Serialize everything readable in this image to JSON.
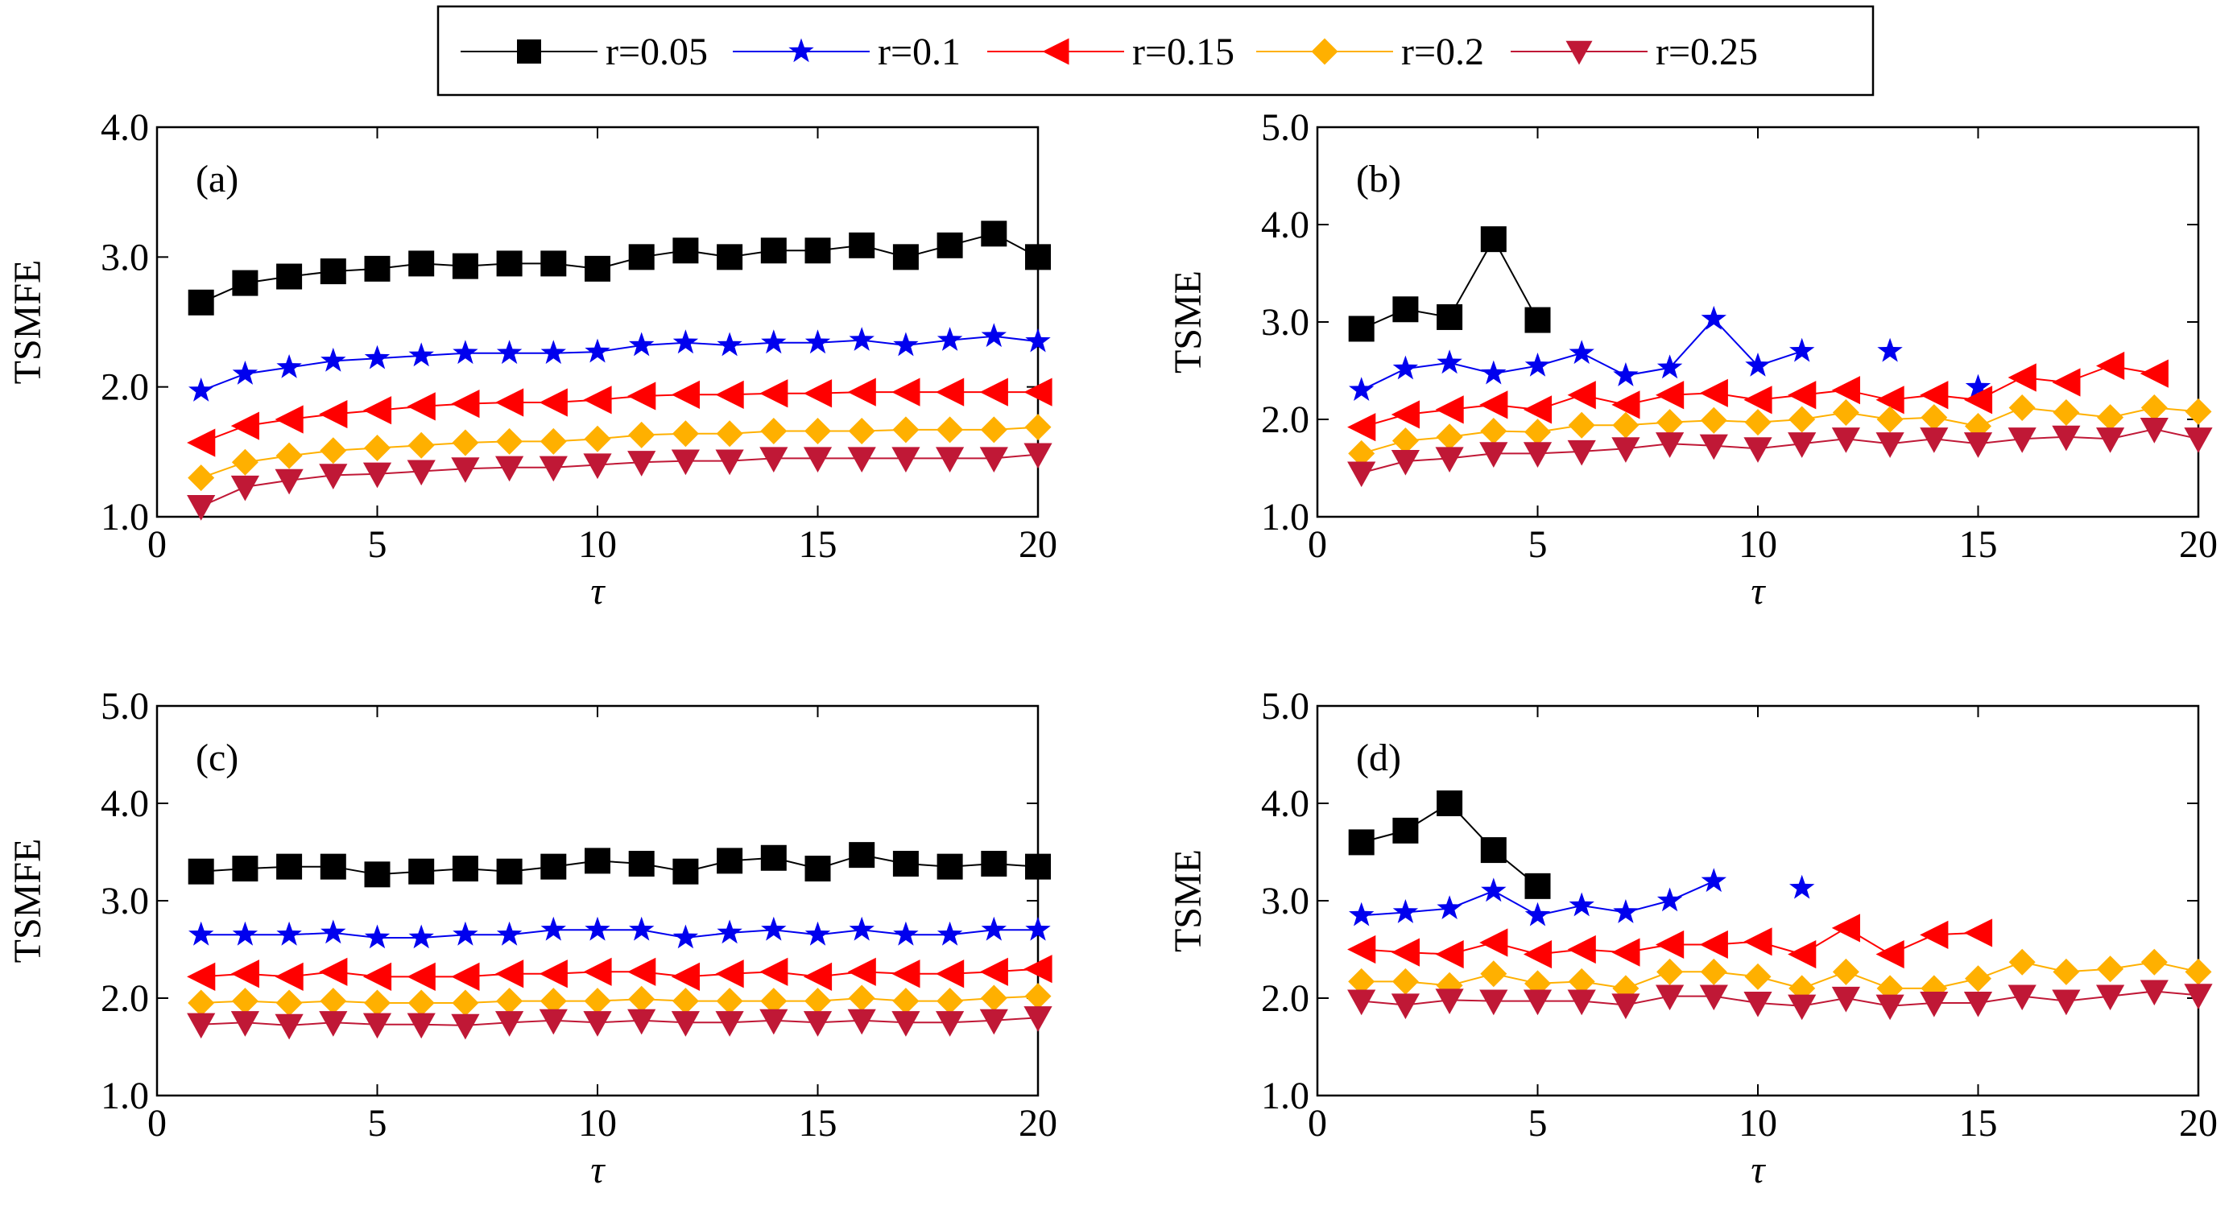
{
  "chart_data": {
    "type": "line",
    "legend": {
      "placement": "top-center",
      "entries": [
        {
          "name": "r=0.05",
          "color": "#000000",
          "marker": "square"
        },
        {
          "name": "r=0.1",
          "color": "#0000ee",
          "marker": "star"
        },
        {
          "name": "r=0.15",
          "color": "#ff0000",
          "marker": "triangle-left"
        },
        {
          "name": "r=0.2",
          "color": "#ffb000",
          "marker": "diamond"
        },
        {
          "name": "r=0.25",
          "color": "#c01836",
          "marker": "triangle-down"
        }
      ]
    },
    "panels": [
      {
        "label": "(a)",
        "xlabel": "τ",
        "ylabel": "TSMFE",
        "xlim": [
          0,
          20
        ],
        "ylim": [
          1.0,
          4.0
        ],
        "xticks": [
          "0",
          "5",
          "10",
          "15",
          "20"
        ],
        "yticks": [
          "1.0",
          "2.0",
          "3.0",
          "4.0"
        ],
        "ytick_values": [
          1.0,
          2.0,
          3.0,
          4.0
        ],
        "series": [
          {
            "name": "r=0.05",
            "x": [
              1,
              2,
              3,
              4,
              5,
              6,
              7,
              8,
              9,
              10,
              11,
              12,
              13,
              14,
              15,
              16,
              17,
              18,
              19,
              20
            ],
            "y": [
              2.65,
              2.8,
              2.85,
              2.89,
              2.91,
              2.95,
              2.93,
              2.95,
              2.95,
              2.91,
              3.0,
              3.05,
              3.0,
              3.05,
              3.05,
              3.09,
              3.0,
              3.09,
              3.18,
              3.0
            ]
          },
          {
            "name": "r=0.1",
            "x": [
              1,
              2,
              3,
              4,
              5,
              6,
              7,
              8,
              9,
              10,
              11,
              12,
              13,
              14,
              15,
              16,
              17,
              18,
              19,
              20
            ],
            "y": [
              1.97,
              2.1,
              2.15,
              2.2,
              2.22,
              2.24,
              2.26,
              2.26,
              2.26,
              2.27,
              2.32,
              2.34,
              2.32,
              2.34,
              2.34,
              2.36,
              2.32,
              2.36,
              2.39,
              2.35
            ]
          },
          {
            "name": "r=0.15",
            "x": [
              1,
              2,
              3,
              4,
              5,
              6,
              7,
              8,
              9,
              10,
              11,
              12,
              13,
              14,
              15,
              16,
              17,
              18,
              19,
              20
            ],
            "y": [
              1.57,
              1.7,
              1.75,
              1.79,
              1.82,
              1.85,
              1.87,
              1.88,
              1.88,
              1.9,
              1.93,
              1.94,
              1.94,
              1.95,
              1.95,
              1.96,
              1.96,
              1.96,
              1.96,
              1.96
            ]
          },
          {
            "name": "r=0.2",
            "x": [
              1,
              2,
              3,
              4,
              5,
              6,
              7,
              8,
              9,
              10,
              11,
              12,
              13,
              14,
              15,
              16,
              17,
              18,
              19,
              20
            ],
            "y": [
              1.3,
              1.42,
              1.47,
              1.51,
              1.53,
              1.55,
              1.57,
              1.58,
              1.58,
              1.6,
              1.63,
              1.64,
              1.64,
              1.66,
              1.66,
              1.66,
              1.67,
              1.67,
              1.67,
              1.69
            ]
          },
          {
            "name": "r=0.25",
            "x": [
              1,
              2,
              3,
              4,
              5,
              6,
              7,
              8,
              9,
              10,
              11,
              12,
              13,
              14,
              15,
              16,
              17,
              18,
              19,
              20
            ],
            "y": [
              1.08,
              1.23,
              1.28,
              1.32,
              1.33,
              1.35,
              1.37,
              1.38,
              1.38,
              1.4,
              1.42,
              1.43,
              1.43,
              1.45,
              1.45,
              1.45,
              1.45,
              1.45,
              1.45,
              1.48
            ]
          }
        ]
      },
      {
        "label": "(b)",
        "xlabel": "τ",
        "ylabel": "TSME",
        "xlim": [
          0,
          20
        ],
        "ylim": [
          1.0,
          5.0
        ],
        "xticks": [
          "0",
          "5",
          "10",
          "15",
          "20"
        ],
        "yticks": [
          "1.0",
          "2.0",
          "3.0",
          "4.0",
          "5.0"
        ],
        "ytick_values": [
          1.0,
          2.0,
          3.0,
          4.0,
          5.0
        ],
        "series": [
          {
            "name": "r=0.05",
            "x": [
              1,
              2,
              3,
              4,
              5
            ],
            "y": [
              2.93,
              3.13,
              3.05,
              3.85,
              3.02
            ]
          },
          {
            "name": "r=0.1",
            "x": [
              1,
              2,
              3,
              4,
              5,
              6,
              7,
              8,
              9,
              10,
              11,
              null,
              13,
              null,
              15
            ],
            "y": [
              2.3,
              2.52,
              2.58,
              2.47,
              2.55,
              2.68,
              2.45,
              2.53,
              3.03,
              2.55,
              2.7,
              null,
              2.7,
              null,
              2.33
            ]
          },
          {
            "name": "r=0.15",
            "x": [
              1,
              2,
              3,
              4,
              5,
              6,
              7,
              8,
              9,
              10,
              11,
              12,
              13,
              14,
              15,
              16,
              17,
              18,
              19
            ],
            "y": [
              1.92,
              2.05,
              2.1,
              2.15,
              2.1,
              2.25,
              2.15,
              2.25,
              2.27,
              2.2,
              2.25,
              2.3,
              2.2,
              2.25,
              2.2,
              2.43,
              2.38,
              2.55,
              2.47
            ]
          },
          {
            "name": "r=0.2",
            "x": [
              1,
              2,
              3,
              4,
              5,
              6,
              7,
              8,
              9,
              10,
              11,
              12,
              13,
              14,
              15,
              16,
              17,
              18,
              19,
              20
            ],
            "y": [
              1.65,
              1.78,
              1.82,
              1.88,
              1.87,
              1.94,
              1.94,
              1.97,
              1.99,
              1.97,
              2.0,
              2.07,
              2.0,
              2.02,
              1.93,
              2.12,
              2.07,
              2.02,
              2.12,
              2.08
            ]
          },
          {
            "name": "r=0.25",
            "x": [
              1,
              2,
              3,
              4,
              5,
              6,
              7,
              8,
              9,
              10,
              11,
              12,
              13,
              14,
              15,
              16,
              17,
              18,
              19,
              20
            ],
            "y": [
              1.45,
              1.57,
              1.6,
              1.65,
              1.65,
              1.67,
              1.7,
              1.75,
              1.73,
              1.7,
              1.75,
              1.8,
              1.75,
              1.8,
              1.75,
              1.8,
              1.82,
              1.8,
              1.9,
              1.8
            ]
          }
        ]
      },
      {
        "label": "(c)",
        "xlabel": "τ",
        "ylabel": "TSMFE",
        "xlim": [
          0,
          20
        ],
        "ylim": [
          1.0,
          5.0
        ],
        "xticks": [
          "0",
          "5",
          "10",
          "15",
          "20"
        ],
        "yticks": [
          "1.0",
          "2.0",
          "3.0",
          "4.0",
          "5.0"
        ],
        "ytick_values": [
          1.0,
          2.0,
          3.0,
          4.0,
          5.0
        ],
        "series": [
          {
            "name": "r=0.05",
            "x": [
              1,
              2,
              3,
              4,
              5,
              6,
              7,
              8,
              9,
              10,
              11,
              12,
              13,
              14,
              15,
              16,
              17,
              18,
              19,
              20
            ],
            "y": [
              3.3,
              3.33,
              3.35,
              3.35,
              3.27,
              3.3,
              3.33,
              3.3,
              3.35,
              3.41,
              3.38,
              3.3,
              3.41,
              3.44,
              3.33,
              3.47,
              3.38,
              3.35,
              3.38,
              3.35
            ]
          },
          {
            "name": "r=0.1",
            "x": [
              1,
              2,
              3,
              4,
              5,
              6,
              7,
              8,
              9,
              10,
              11,
              12,
              13,
              14,
              15,
              16,
              17,
              18,
              19,
              20
            ],
            "y": [
              2.65,
              2.65,
              2.65,
              2.67,
              2.62,
              2.62,
              2.65,
              2.65,
              2.7,
              2.7,
              2.7,
              2.62,
              2.67,
              2.7,
              2.65,
              2.7,
              2.65,
              2.65,
              2.7,
              2.7
            ]
          },
          {
            "name": "r=0.15",
            "x": [
              1,
              2,
              3,
              4,
              5,
              6,
              7,
              8,
              9,
              10,
              11,
              12,
              13,
              14,
              15,
              16,
              17,
              18,
              19,
              20
            ],
            "y": [
              2.22,
              2.25,
              2.22,
              2.27,
              2.22,
              2.22,
              2.22,
              2.25,
              2.25,
              2.27,
              2.27,
              2.22,
              2.25,
              2.27,
              2.22,
              2.27,
              2.25,
              2.25,
              2.27,
              2.3
            ]
          },
          {
            "name": "r=0.2",
            "x": [
              1,
              2,
              3,
              4,
              5,
              6,
              7,
              8,
              9,
              10,
              11,
              12,
              13,
              14,
              15,
              16,
              17,
              18,
              19,
              20
            ],
            "y": [
              1.95,
              1.97,
              1.95,
              1.97,
              1.95,
              1.95,
              1.95,
              1.97,
              1.97,
              1.97,
              1.99,
              1.97,
              1.97,
              1.97,
              1.97,
              2.0,
              1.97,
              1.97,
              2.0,
              2.02
            ]
          },
          {
            "name": "r=0.25",
            "x": [
              1,
              2,
              3,
              4,
              5,
              6,
              7,
              8,
              9,
              10,
              11,
              12,
              13,
              14,
              15,
              16,
              17,
              18,
              19,
              20
            ],
            "y": [
              1.73,
              1.75,
              1.72,
              1.75,
              1.73,
              1.73,
              1.72,
              1.75,
              1.77,
              1.75,
              1.77,
              1.75,
              1.75,
              1.77,
              1.75,
              1.77,
              1.75,
              1.75,
              1.77,
              1.8
            ]
          }
        ]
      },
      {
        "label": "(d)",
        "xlabel": "τ",
        "ylabel": "TSME",
        "xlim": [
          0,
          20
        ],
        "ylim": [
          1.0,
          5.0
        ],
        "xticks": [
          "0",
          "5",
          "10",
          "15",
          "20"
        ],
        "yticks": [
          "1.0",
          "2.0",
          "3.0",
          "4.0",
          "5.0"
        ],
        "ytick_values": [
          1.0,
          2.0,
          3.0,
          4.0,
          5.0
        ],
        "series": [
          {
            "name": "r=0.05",
            "x": [
              1,
              2,
              3,
              4,
              5
            ],
            "y": [
              3.6,
              3.72,
              4.0,
              3.52,
              3.15
            ]
          },
          {
            "name": "r=0.1",
            "x": [
              1,
              2,
              3,
              4,
              5,
              6,
              7,
              8,
              9,
              null,
              11
            ],
            "y": [
              2.85,
              2.88,
              2.92,
              3.1,
              2.85,
              2.95,
              2.88,
              3.0,
              3.2,
              null,
              3.13
            ]
          },
          {
            "name": "r=0.15",
            "x": [
              1,
              2,
              3,
              4,
              5,
              6,
              7,
              8,
              9,
              10,
              11,
              12,
              13,
              14,
              15
            ],
            "y": [
              2.5,
              2.47,
              2.45,
              2.57,
              2.45,
              2.5,
              2.47,
              2.55,
              2.55,
              2.58,
              2.45,
              2.72,
              2.45,
              2.65,
              2.67
            ]
          },
          {
            "name": "r=0.2",
            "x": [
              1,
              2,
              3,
              4,
              5,
              6,
              7,
              8,
              9,
              10,
              11,
              12,
              13,
              14,
              15,
              16,
              17,
              18,
              19,
              20
            ],
            "y": [
              2.17,
              2.17,
              2.13,
              2.25,
              2.15,
              2.17,
              2.1,
              2.27,
              2.27,
              2.22,
              2.1,
              2.27,
              2.1,
              2.1,
              2.2,
              2.37,
              2.27,
              2.3,
              2.37,
              2.27
            ]
          },
          {
            "name": "r=0.25",
            "x": [
              1,
              2,
              3,
              4,
              5,
              6,
              7,
              8,
              9,
              10,
              11,
              12,
              13,
              14,
              15,
              16,
              17,
              18,
              19,
              20
            ],
            "y": [
              1.97,
              1.93,
              1.98,
              1.97,
              1.97,
              1.97,
              1.93,
              2.02,
              2.02,
              1.95,
              1.92,
              2.0,
              1.92,
              1.95,
              1.95,
              2.02,
              1.97,
              2.02,
              2.07,
              2.03
            ]
          }
        ]
      }
    ]
  }
}
